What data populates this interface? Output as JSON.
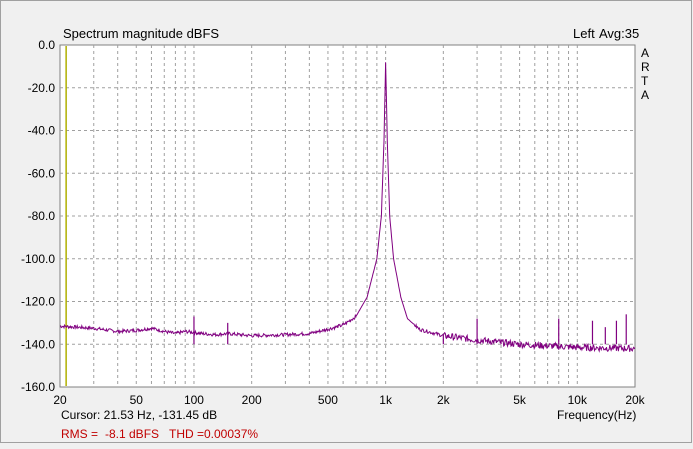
{
  "chart_data": {
    "type": "line",
    "title": "Spectrum magnitude dBFS",
    "channel_label": "Left",
    "avg_label": "Avg:35",
    "brand": [
      "A",
      "R",
      "T",
      "A"
    ],
    "xlabel": "Frequency(Hz)",
    "x_scale": "log",
    "xlim": [
      20,
      20000
    ],
    "ylim": [
      -160,
      0
    ],
    "x_ticks": [
      {
        "v": 20,
        "label": "20"
      },
      {
        "v": 50,
        "label": "50"
      },
      {
        "v": 100,
        "label": "100"
      },
      {
        "v": 200,
        "label": "200"
      },
      {
        "v": 500,
        "label": "500"
      },
      {
        "v": 1000,
        "label": "1k"
      },
      {
        "v": 2000,
        "label": "2k"
      },
      {
        "v": 5000,
        "label": "5k"
      },
      {
        "v": 10000,
        "label": "10k"
      },
      {
        "v": 20000,
        "label": "20k"
      }
    ],
    "x_minor": [
      30,
      40,
      60,
      70,
      80,
      90,
      300,
      400,
      600,
      700,
      800,
      900,
      3000,
      4000,
      6000,
      7000,
      8000,
      9000
    ],
    "y_ticks": [
      {
        "v": 0,
        "label": "0.0"
      },
      {
        "v": -20,
        "label": "-20.0"
      },
      {
        "v": -40,
        "label": "-40.0"
      },
      {
        "v": -60,
        "label": "-60.0"
      },
      {
        "v": -80,
        "label": "-80.0"
      },
      {
        "v": -100,
        "label": "-100.0"
      },
      {
        "v": -120,
        "label": "-120.0"
      },
      {
        "v": -140,
        "label": "-140.0"
      },
      {
        "v": -160,
        "label": "-160.0"
      }
    ],
    "grid": true,
    "colors": {
      "spectrum": "#800080",
      "cursor": "#b0b000",
      "grid": "#a0a0a0",
      "status": "#c00000"
    },
    "cursor_freq": 21.53,
    "series": [
      {
        "values": [
          [
            20,
            -131.5
          ],
          [
            30,
            -132.5
          ],
          [
            40,
            -134
          ],
          [
            50,
            -133.5
          ],
          [
            60,
            -132.5
          ],
          [
            70,
            -134
          ],
          [
            80,
            -135
          ],
          [
            90,
            -134
          ],
          [
            100,
            -134.5
          ],
          [
            110,
            -135
          ],
          [
            130,
            -135.5
          ],
          [
            150,
            -135
          ],
          [
            200,
            -136
          ],
          [
            300,
            -135.5
          ],
          [
            400,
            -135
          ],
          [
            500,
            -133
          ],
          [
            600,
            -131
          ],
          [
            700,
            -127
          ],
          [
            800,
            -118
          ],
          [
            900,
            -100
          ],
          [
            950,
            -80
          ],
          [
            980,
            -45
          ],
          [
            1000,
            -8.1
          ],
          [
            1020,
            -45
          ],
          [
            1050,
            -80
          ],
          [
            1100,
            -100
          ],
          [
            1200,
            -118
          ],
          [
            1300,
            -128
          ],
          [
            1500,
            -133
          ],
          [
            2000,
            -136
          ],
          [
            3000,
            -138
          ],
          [
            5000,
            -140
          ],
          [
            10000,
            -141.5
          ],
          [
            20000,
            -142
          ]
        ],
        "spikes": [
          [
            100,
            -127
          ],
          [
            150,
            -130
          ],
          [
            2000,
            -136
          ],
          [
            3000,
            -128
          ],
          [
            4000,
            -138
          ],
          [
            8000,
            -128
          ],
          [
            12000,
            -129
          ],
          [
            14000,
            -132
          ],
          [
            16000,
            -129
          ],
          [
            18000,
            -126
          ]
        ]
      }
    ]
  },
  "status": {
    "cursor_text": "Cursor: 21.53 Hz, -131.45 dB",
    "rms_label": "RMS =",
    "rms_value": "-8.1 dBFS",
    "thd_label": "THD =0.00037%"
  }
}
